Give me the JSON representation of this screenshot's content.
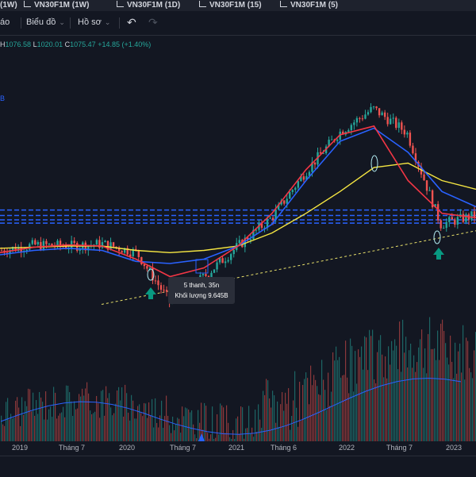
{
  "tabs": [
    {
      "label": "(1W)"
    },
    {
      "label": "VN30F1M (1W)"
    },
    {
      "label": "VN30F1M (1D)"
    },
    {
      "label": "VN30F1M (15)"
    },
    {
      "label": "VN30F1M (5)"
    }
  ],
  "toolbar": {
    "cut_label": "áo",
    "chart_type_label": "Biểu đồ",
    "profile_label": "Hồ sơ"
  },
  "legend": {
    "h_label": "H",
    "h_value": "1076.58",
    "l_label": "L",
    "l_value": "1020.01",
    "c_label": "C",
    "c_value": "1075.47",
    "change": "+14.85 (+1.40%)",
    "side_label": "B"
  },
  "tooltip": {
    "line1": "5 thanh, 35n",
    "line2": "Khối lượng 9.645B"
  },
  "x_axis_labels": [
    "2019",
    "Tháng 7",
    "2020",
    "Tháng 7",
    "2021",
    "Tháng 6",
    "2022",
    "Tháng 7",
    "2023"
  ],
  "colors": {
    "background": "#131722",
    "up": "#26a69a",
    "down": "#ef5350",
    "ma_red": "#f23645",
    "ma_blue": "#2962ff",
    "ma_yellow": "#f5e642",
    "trendline": "#e8e06a",
    "hlines": "#2962ff",
    "arrow": "#089981"
  },
  "icons": [
    "chart-tab-icon",
    "undo-icon",
    "redo-icon",
    "chevron-down-icon",
    "up-arrow-icon"
  ],
  "chart_data": {
    "type": "candlestick",
    "timeframe": "1W",
    "x": [
      "2019",
      "Tháng 7",
      "2020",
      "Tháng 7",
      "2021",
      "Tháng 6",
      "2022",
      "Tháng 7",
      "2023"
    ],
    "close_path": [
      880,
      905,
      900,
      910,
      870,
      640,
      760,
      900,
      1030,
      1240,
      1420,
      1530,
      1420,
      1000,
      1040
    ],
    "ma_fast": [
      870,
      895,
      905,
      900,
      840,
      760,
      800,
      900,
      1050,
      1250,
      1410,
      1450,
      1200,
      1050,
      1030
    ],
    "ma_slow": [
      860,
      880,
      890,
      880,
      830,
      820,
      840,
      900,
      1000,
      1200,
      1380,
      1440,
      1330,
      1150,
      1080
    ],
    "ma_long": [
      890,
      895,
      900,
      900,
      880,
      870,
      880,
      900,
      960,
      1050,
      1150,
      1260,
      1280,
      1200,
      1160
    ],
    "support_line": [
      [
        0,
        640
      ],
      [
        14,
        970
      ]
    ],
    "resistance_levels": [
      1065,
      1040,
      1020,
      1005
    ],
    "markers": [
      "up-arrow at 2020 low",
      "up-arrow at late-2022 low"
    ]
  }
}
